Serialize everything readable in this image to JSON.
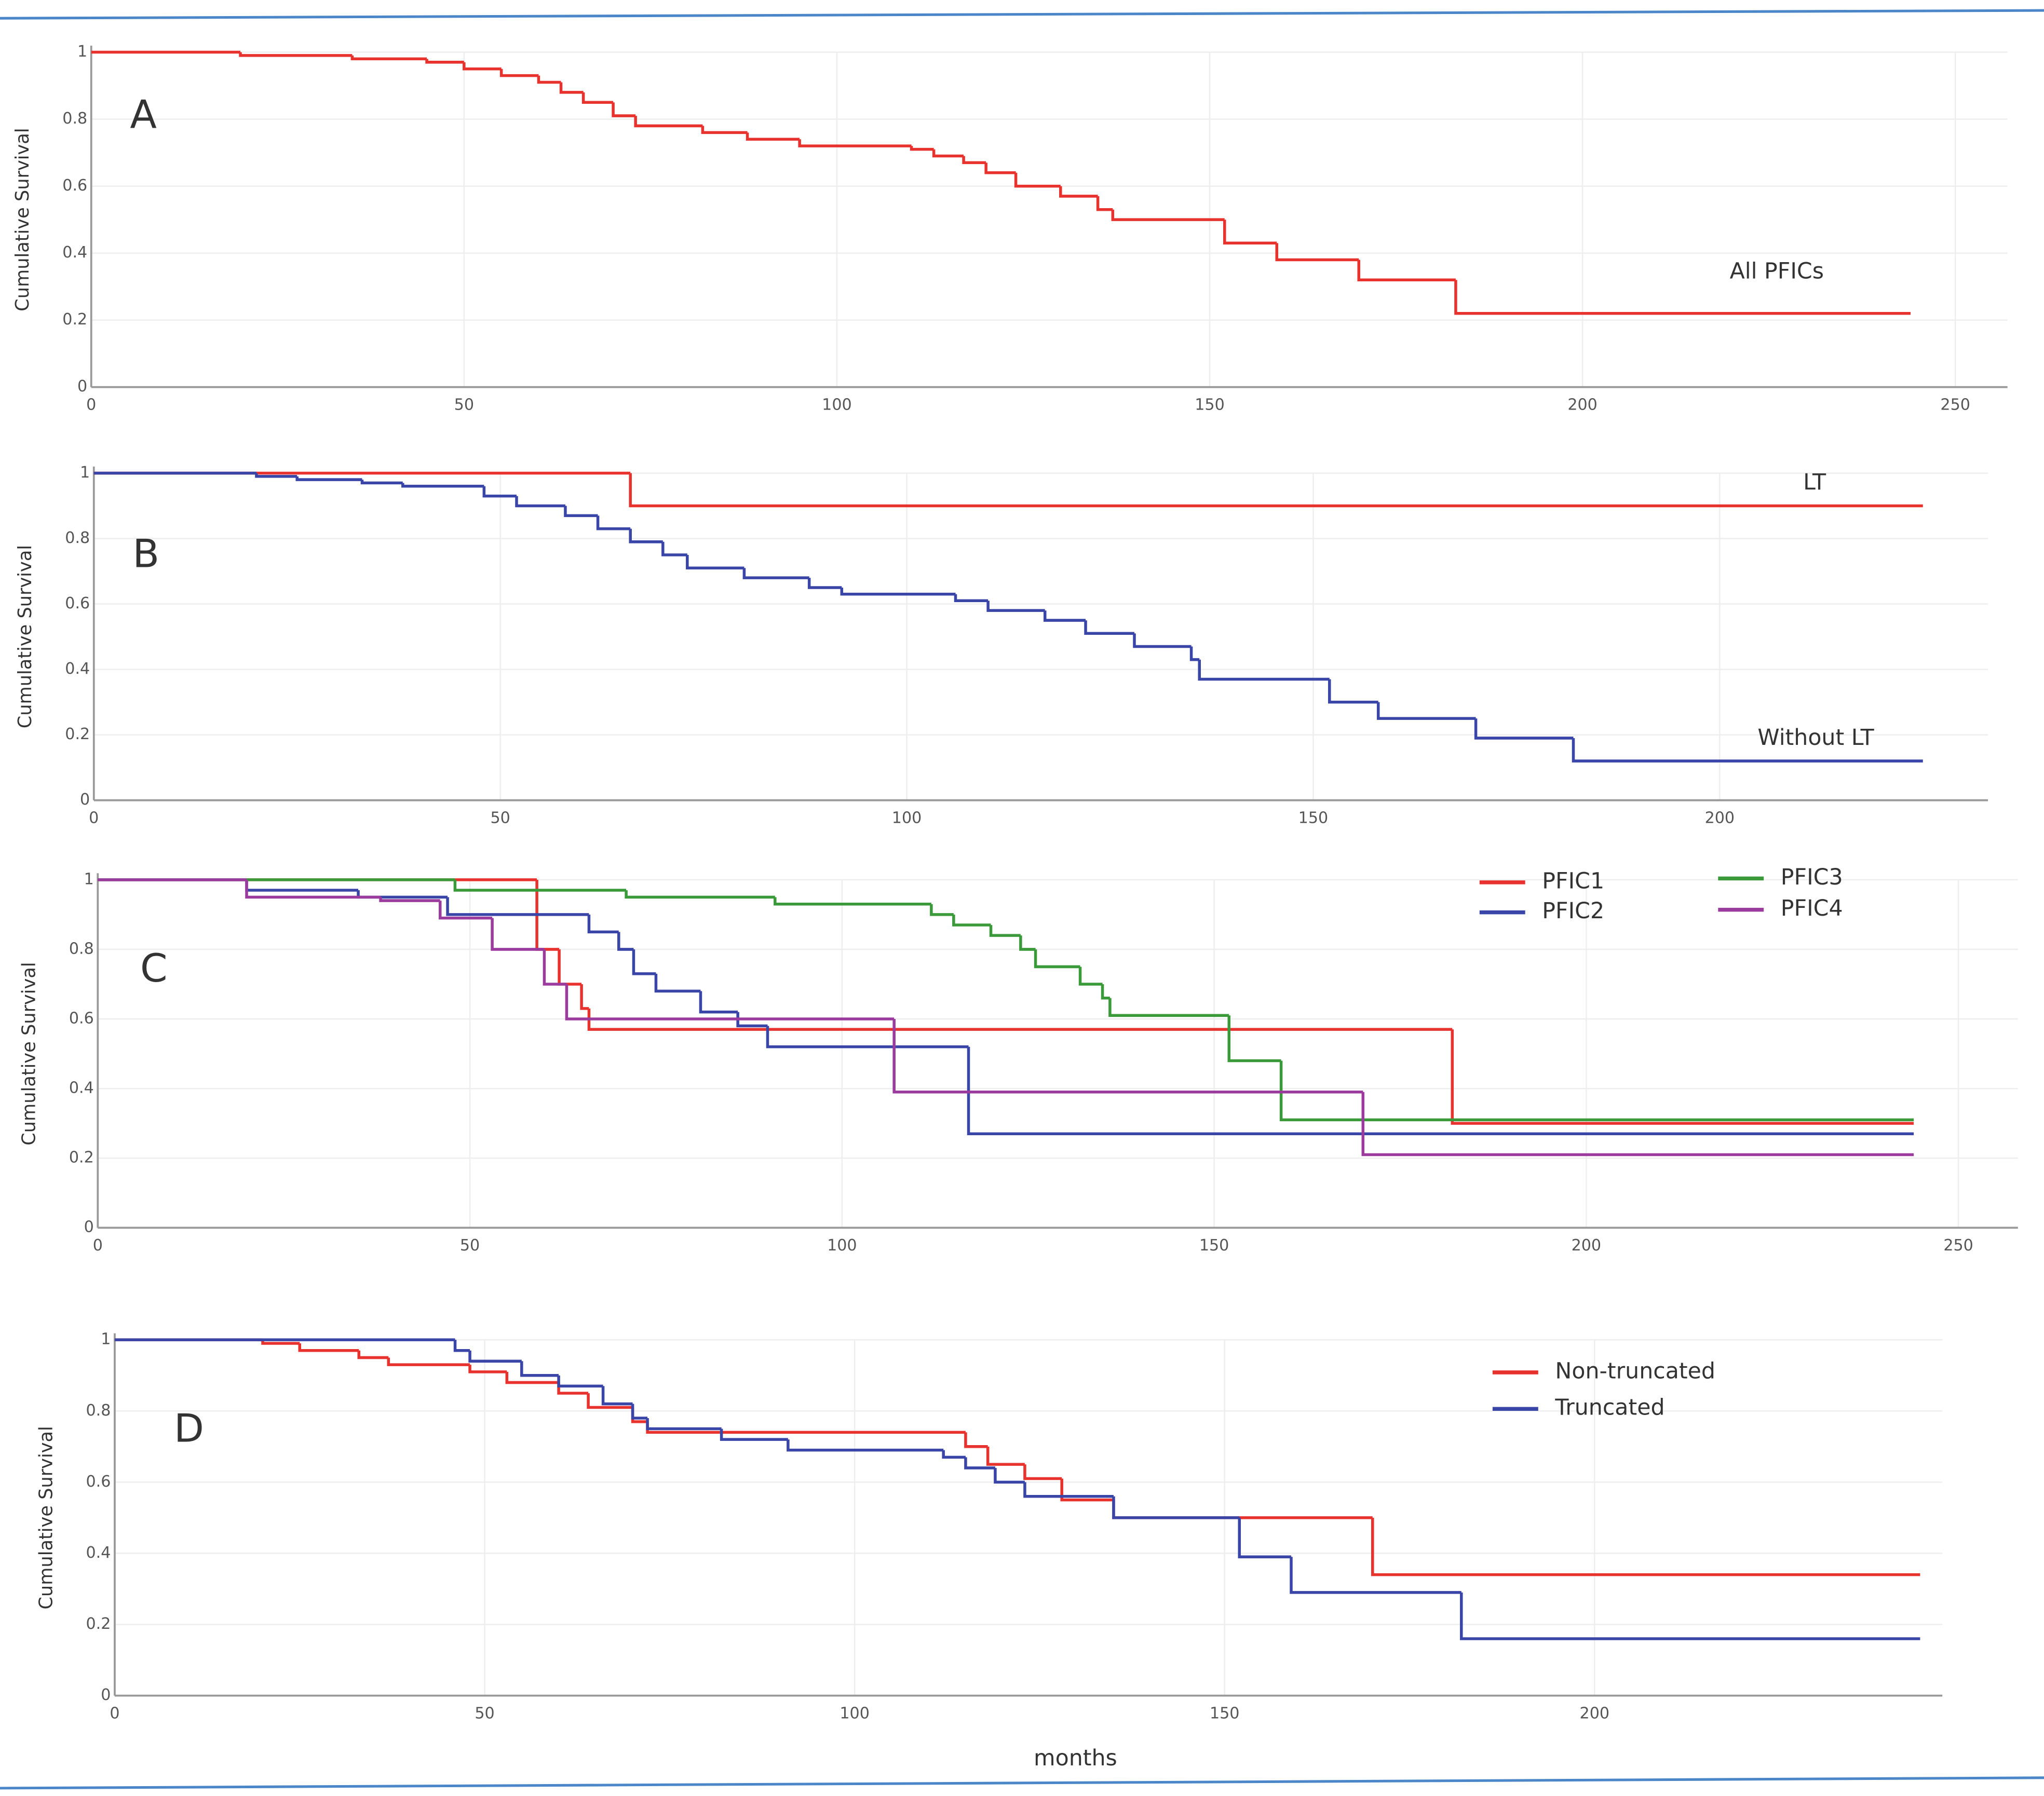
{
  "chart_data": [
    {
      "type": "line",
      "step": true,
      "label": "A",
      "ylabel": "Cumulative Survival",
      "xlim": [
        0,
        257
      ],
      "ylim": [
        0,
        1
      ],
      "xticks": [
        0,
        50,
        100,
        150,
        200,
        250
      ],
      "yticks": [
        0,
        0.2,
        0.4,
        0.6,
        0.8,
        1
      ],
      "grid": true,
      "annotations": [
        "All PFICs"
      ],
      "x": [
        0,
        20,
        35,
        45,
        50,
        55,
        60,
        63,
        66,
        70,
        73,
        82,
        88,
        95,
        110,
        113,
        117,
        120,
        124,
        130,
        135,
        137,
        152,
        159,
        170,
        183,
        244
      ],
      "series": [
        {
          "name": null,
          "color": "#e8322e",
          "values": [
            1,
            0.99,
            0.98,
            0.97,
            0.95,
            0.93,
            0.91,
            0.88,
            0.85,
            0.81,
            0.78,
            0.76,
            0.74,
            0.72,
            0.71,
            0.69,
            0.67,
            0.64,
            0.6,
            0.57,
            0.53,
            0.5,
            0.43,
            0.38,
            0.32,
            0.22,
            0.22
          ]
        }
      ]
    },
    {
      "type": "line",
      "step": true,
      "label": "B",
      "ylabel": "Cumulative Survival",
      "xlim": [
        0,
        233
      ],
      "ylim": [
        0,
        1
      ],
      "xticks": [
        0,
        50,
        100,
        150,
        200
      ],
      "yticks": [
        0,
        0.2,
        0.4,
        0.6,
        0.8,
        1
      ],
      "grid": true,
      "annotations": [
        "LT",
        "Without LT"
      ],
      "series": [
        {
          "name": null,
          "color": "#e8322e",
          "x": [
            0,
            66,
            225
          ],
          "values": [
            1,
            0.9,
            0.9
          ]
        },
        {
          "name": null,
          "color": "#3a45a8",
          "x": [
            0,
            20,
            25,
            33,
            38,
            48,
            52,
            58,
            62,
            66,
            70,
            73,
            80,
            88,
            92,
            106,
            110,
            117,
            122,
            128,
            135,
            136,
            152,
            158,
            170,
            182,
            225
          ],
          "values": [
            1,
            0.99,
            0.98,
            0.97,
            0.96,
            0.93,
            0.9,
            0.87,
            0.83,
            0.79,
            0.75,
            0.71,
            0.68,
            0.65,
            0.63,
            0.61,
            0.58,
            0.55,
            0.51,
            0.47,
            0.43,
            0.37,
            0.3,
            0.25,
            0.19,
            0.12,
            0.12
          ]
        }
      ]
    },
    {
      "type": "line",
      "step": true,
      "label": "C",
      "ylabel": "Cumulative Survival",
      "xlim": [
        0,
        258
      ],
      "ylim": [
        0,
        1
      ],
      "xticks": [
        0,
        50,
        100,
        150,
        200,
        250
      ],
      "yticks": [
        0,
        0.2,
        0.4,
        0.6,
        0.8,
        1
      ],
      "grid": true,
      "legend": "upper right",
      "series": [
        {
          "name": "PFIC1",
          "color": "#e8322e",
          "x": [
            0,
            59,
            62,
            65,
            66,
            182,
            244
          ],
          "values": [
            1,
            0.8,
            0.7,
            0.63,
            0.57,
            0.3,
            0.3
          ]
        },
        {
          "name": "PFIC2",
          "color": "#3a45a8",
          "x": [
            0,
            20,
            35,
            47,
            66,
            70,
            72,
            75,
            81,
            86,
            90,
            117,
            244
          ],
          "values": [
            1,
            0.97,
            0.95,
            0.9,
            0.85,
            0.8,
            0.73,
            0.68,
            0.62,
            0.58,
            0.52,
            0.27,
            0.27
          ]
        },
        {
          "name": "PFIC3",
          "color": "#3a9a3a",
          "x": [
            0,
            48,
            71,
            91,
            112,
            115,
            120,
            124,
            126,
            132,
            135,
            136,
            152,
            159,
            244
          ],
          "values": [
            1,
            0.97,
            0.95,
            0.93,
            0.9,
            0.87,
            0.84,
            0.8,
            0.75,
            0.7,
            0.66,
            0.61,
            0.48,
            0.31,
            0.31
          ]
        },
        {
          "name": "PFIC4",
          "color": "#9b3b9e",
          "x": [
            0,
            20,
            38,
            46,
            53,
            60,
            63,
            107,
            170,
            244
          ],
          "values": [
            1,
            0.95,
            0.94,
            0.89,
            0.8,
            0.7,
            0.6,
            0.39,
            0.21,
            0.21
          ]
        }
      ]
    },
    {
      "type": "line",
      "step": true,
      "label": "D",
      "ylabel": "Cumulative Survival",
      "xlabel": "months",
      "xlim": [
        0,
        247
      ],
      "ylim": [
        0,
        1
      ],
      "xticks": [
        0,
        50,
        100,
        150,
        200
      ],
      "yticks": [
        0,
        0.2,
        0.4,
        0.6,
        0.8,
        1
      ],
      "grid": true,
      "legend": "upper right",
      "series": [
        {
          "name": "Non-truncated",
          "color": "#e8322e",
          "x": [
            0,
            20,
            25,
            33,
            37,
            48,
            53,
            60,
            64,
            70,
            72,
            115,
            118,
            123,
            128,
            135,
            170,
            244
          ],
          "values": [
            1,
            0.99,
            0.97,
            0.95,
            0.93,
            0.91,
            0.88,
            0.85,
            0.81,
            0.77,
            0.74,
            0.7,
            0.65,
            0.61,
            0.55,
            0.5,
            0.34,
            0.34
          ]
        },
        {
          "name": "Truncated",
          "color": "#3a45a8",
          "x": [
            0,
            46,
            48,
            55,
            60,
            66,
            70,
            72,
            82,
            91,
            112,
            115,
            119,
            123,
            135,
            152,
            159,
            182,
            244
          ],
          "values": [
            1,
            0.97,
            0.94,
            0.9,
            0.87,
            0.82,
            0.78,
            0.75,
            0.72,
            0.69,
            0.67,
            0.64,
            0.6,
            0.56,
            0.5,
            0.39,
            0.29,
            0.16,
            0.16
          ]
        }
      ]
    }
  ]
}
